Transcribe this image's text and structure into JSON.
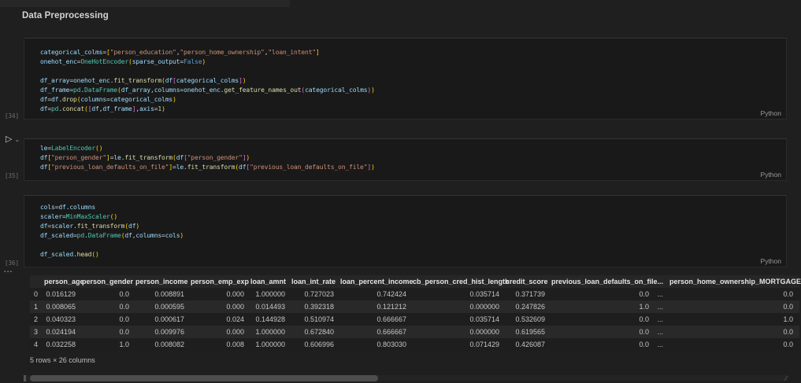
{
  "header": {
    "title": "Data Preprocessing"
  },
  "syntax_colors": {
    "variable": "#9cdcfe",
    "string": "#ce9178",
    "class": "#4ec9b0",
    "function": "#dcdcaa",
    "constant": "#569cd6",
    "number": "#b5cea8",
    "bracket_level1": "#ffd700",
    "bracket_level2": "#da70d6",
    "punctuation": "#d4d4d4",
    "cell_background": "#191919",
    "page_background": "#1f1f1f"
  },
  "icons": {
    "run_play": "▷",
    "run_chevron": "⌄"
  },
  "cells": [
    {
      "execution_count": "[34]",
      "language": "Python",
      "lines": [
        [
          [
            "v",
            "categorical_colms"
          ],
          [
            "p",
            "="
          ],
          [
            "b1",
            "["
          ],
          [
            "s",
            "\"person_education\""
          ],
          [
            "p",
            ","
          ],
          [
            "s",
            "\"person_home_ownership\""
          ],
          [
            "p",
            ","
          ],
          [
            "s",
            "\"loan_intent\""
          ],
          [
            "b1",
            "]"
          ]
        ],
        [
          [
            "v",
            "onehot_enc"
          ],
          [
            "p",
            "="
          ],
          [
            "c",
            "OneHotEncoder"
          ],
          [
            "b1",
            "("
          ],
          [
            "v",
            "sparse_output"
          ],
          [
            "p",
            "="
          ],
          [
            "k",
            "False"
          ],
          [
            "b1",
            ")"
          ]
        ],
        [],
        [
          [
            "v",
            "df_array"
          ],
          [
            "p",
            "="
          ],
          [
            "v",
            "onehot_enc"
          ],
          [
            "p",
            "."
          ],
          [
            "f",
            "fit_transform"
          ],
          [
            "b1",
            "("
          ],
          [
            "v",
            "df"
          ],
          [
            "b2",
            "["
          ],
          [
            "v",
            "categorical_colms"
          ],
          [
            "b2",
            "]"
          ],
          [
            "b1",
            ")"
          ]
        ],
        [
          [
            "v",
            "df_frame"
          ],
          [
            "p",
            "="
          ],
          [
            "c",
            "pd"
          ],
          [
            "p",
            "."
          ],
          [
            "c",
            "DataFrame"
          ],
          [
            "b1",
            "("
          ],
          [
            "v",
            "df_array"
          ],
          [
            "p",
            ","
          ],
          [
            "v",
            "columns"
          ],
          [
            "p",
            "="
          ],
          [
            "v",
            "onehot_enc"
          ],
          [
            "p",
            "."
          ],
          [
            "f",
            "get_feature_names_out"
          ],
          [
            "b2",
            "("
          ],
          [
            "v",
            "categorical_colms"
          ],
          [
            "b2",
            ")"
          ],
          [
            "b1",
            ")"
          ]
        ],
        [
          [
            "v",
            "df"
          ],
          [
            "p",
            "="
          ],
          [
            "v",
            "df"
          ],
          [
            "p",
            "."
          ],
          [
            "f",
            "drop"
          ],
          [
            "b1",
            "("
          ],
          [
            "v",
            "columns"
          ],
          [
            "p",
            "="
          ],
          [
            "v",
            "categorical_colms"
          ],
          [
            "b1",
            ")"
          ]
        ],
        [
          [
            "v",
            "df"
          ],
          [
            "p",
            "="
          ],
          [
            "c",
            "pd"
          ],
          [
            "p",
            "."
          ],
          [
            "f",
            "concat"
          ],
          [
            "b1",
            "("
          ],
          [
            "b2",
            "["
          ],
          [
            "v",
            "df"
          ],
          [
            "p",
            ","
          ],
          [
            "v",
            "df_frame"
          ],
          [
            "b2",
            "]"
          ],
          [
            "p",
            ","
          ],
          [
            "v",
            "axis"
          ],
          [
            "p",
            "="
          ],
          [
            "n",
            "1"
          ],
          [
            "b1",
            ")"
          ]
        ]
      ]
    },
    {
      "execution_count": "[35]",
      "language": "Python",
      "lines": [
        [
          [
            "v",
            "le"
          ],
          [
            "p",
            "="
          ],
          [
            "c",
            "LabelEncoder"
          ],
          [
            "b1",
            "("
          ],
          [
            "b1",
            ")"
          ]
        ],
        [
          [
            "v",
            "df"
          ],
          [
            "b1",
            "["
          ],
          [
            "s",
            "\"person_gender\""
          ],
          [
            "b1",
            "]"
          ],
          [
            "p",
            "="
          ],
          [
            "v",
            "le"
          ],
          [
            "p",
            "."
          ],
          [
            "f",
            "fit_transform"
          ],
          [
            "b1",
            "("
          ],
          [
            "v",
            "df"
          ],
          [
            "b2",
            "["
          ],
          [
            "s",
            "\"person_gender\""
          ],
          [
            "b2",
            "]"
          ],
          [
            "b1",
            ")"
          ]
        ],
        [
          [
            "v",
            "df"
          ],
          [
            "b1",
            "["
          ],
          [
            "s",
            "\"previous_loan_defaults_on_file\""
          ],
          [
            "b1",
            "]"
          ],
          [
            "p",
            "="
          ],
          [
            "v",
            "le"
          ],
          [
            "p",
            "."
          ],
          [
            "f",
            "fit_transform"
          ],
          [
            "b1",
            "("
          ],
          [
            "v",
            "df"
          ],
          [
            "b2",
            "["
          ],
          [
            "s",
            "\"previous_loan_defaults_on_file\""
          ],
          [
            "b2",
            "]"
          ],
          [
            "b1",
            ")"
          ]
        ]
      ]
    },
    {
      "execution_count": "[36]",
      "language": "Python",
      "lines": [
        [
          [
            "v",
            "cols"
          ],
          [
            "p",
            "="
          ],
          [
            "v",
            "df"
          ],
          [
            "p",
            "."
          ],
          [
            "v",
            "columns"
          ]
        ],
        [
          [
            "v",
            "scaler"
          ],
          [
            "p",
            "="
          ],
          [
            "c",
            "MinMaxScaler"
          ],
          [
            "b1",
            "("
          ],
          [
            "b1",
            ")"
          ]
        ],
        [
          [
            "v",
            "df"
          ],
          [
            "p",
            "="
          ],
          [
            "v",
            "scaler"
          ],
          [
            "p",
            "."
          ],
          [
            "f",
            "fit_transform"
          ],
          [
            "b1",
            "("
          ],
          [
            "v",
            "df"
          ],
          [
            "b1",
            ")"
          ]
        ],
        [
          [
            "v",
            "df_scaled"
          ],
          [
            "p",
            "="
          ],
          [
            "c",
            "pd"
          ],
          [
            "p",
            "."
          ],
          [
            "c",
            "DataFrame"
          ],
          [
            "b1",
            "("
          ],
          [
            "v",
            "df"
          ],
          [
            "p",
            ","
          ],
          [
            "v",
            "columns"
          ],
          [
            "p",
            "="
          ],
          [
            "v",
            "cols"
          ],
          [
            "b1",
            ")"
          ]
        ],
        [],
        [
          [
            "v",
            "df_scaled"
          ],
          [
            "p",
            "."
          ],
          [
            "f",
            "head"
          ],
          [
            "b1",
            "("
          ],
          [
            "b1",
            ")"
          ]
        ]
      ]
    }
  ],
  "output": {
    "gutter_ellipsis": "...",
    "table": {
      "columns": [
        {
          "label": "",
          "width": 18
        },
        {
          "label": "person_age",
          "width": 48
        },
        {
          "label": "person_gender",
          "width": 68
        },
        {
          "label": "person_income",
          "width": 70
        },
        {
          "label": "person_emp_exp",
          "width": 76
        },
        {
          "label": "loan_amnt",
          "width": 52
        },
        {
          "label": "loan_int_rate",
          "width": 62
        },
        {
          "label": "loan_percent_income",
          "width": 92
        },
        {
          "label": "cb_person_cred_hist_length",
          "width": 118
        },
        {
          "label": "credit_score",
          "width": 58
        },
        {
          "label": "previous_loan_defaults_on_file",
          "width": 132
        },
        {
          "label": "...",
          "width": 18
        },
        {
          "label": "person_home_ownership_MORTGAGE",
          "width": 165
        }
      ],
      "rows": [
        [
          "0",
          "0.016129",
          "0.0",
          "0.008891",
          "0.000",
          "1.000000",
          "0.727023",
          "0.742424",
          "0.035714",
          "0.371739",
          "0.0",
          "...",
          "0.0"
        ],
        [
          "1",
          "0.008065",
          "0.0",
          "0.000595",
          "0.000",
          "0.014493",
          "0.392318",
          "0.121212",
          "0.000000",
          "0.247826",
          "1.0",
          "...",
          "0.0"
        ],
        [
          "2",
          "0.040323",
          "0.0",
          "0.000617",
          "0.024",
          "0.144928",
          "0.510974",
          "0.666667",
          "0.035714",
          "0.532609",
          "0.0",
          "...",
          "1.0"
        ],
        [
          "3",
          "0.024194",
          "0.0",
          "0.009976",
          "0.000",
          "1.000000",
          "0.672840",
          "0.666667",
          "0.000000",
          "0.619565",
          "0.0",
          "...",
          "0.0"
        ],
        [
          "4",
          "0.032258",
          "1.0",
          "0.008082",
          "0.008",
          "1.000000",
          "0.606996",
          "0.803030",
          "0.071429",
          "0.426087",
          "0.0",
          "...",
          "0.0"
        ]
      ]
    },
    "summary": "5 rows × 26 columns"
  }
}
